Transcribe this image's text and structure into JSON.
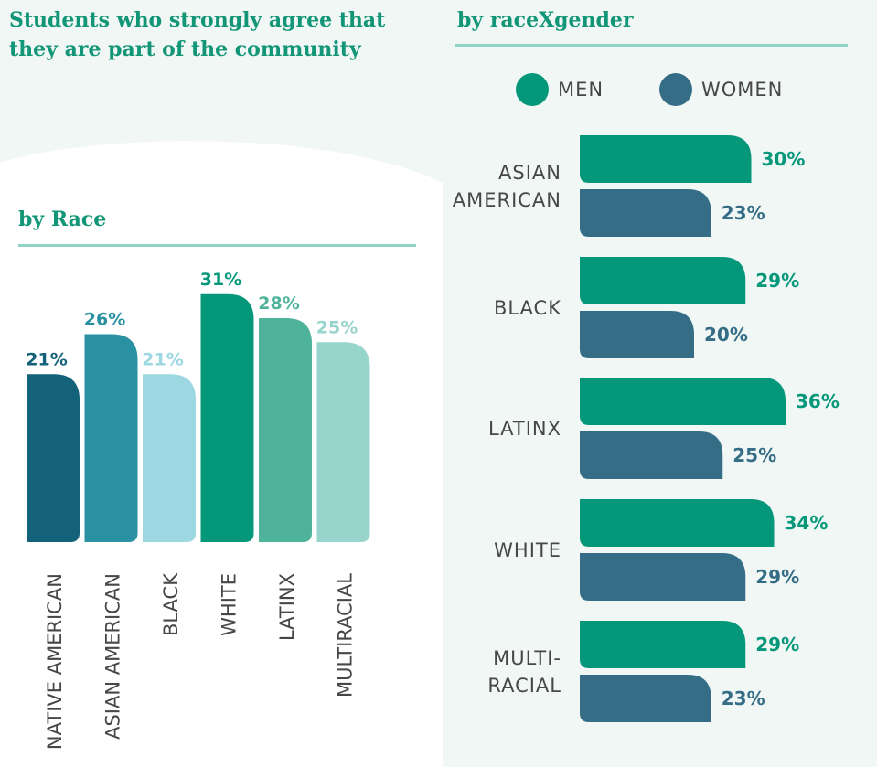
{
  "titles": {
    "main": "Students who strongly agree that they are part of the community",
    "by_race": "by Race",
    "by_race_gender": "by raceXgender"
  },
  "legend": {
    "men": "MEN",
    "women": "WOMEN"
  },
  "colors": {
    "men": "#04977a",
    "women": "#356d86",
    "heading": "#129677",
    "rule": "#8fd4c8"
  },
  "chart_data": [
    {
      "type": "bar",
      "title": "by Race",
      "categories": [
        "NATIVE AMERICAN",
        "ASIAN AMERICAN",
        "BLACK",
        "WHITE",
        "LATINX",
        "MULTIRACIAL"
      ],
      "values": [
        21,
        26,
        21,
        31,
        28,
        25
      ],
      "value_labels": [
        "21%",
        "26%",
        "21%",
        "31%",
        "28%",
        "25%"
      ],
      "colors": [
        "#14627a",
        "#2a91a3",
        "#9cd7e2",
        "#04977a",
        "#4fb39b",
        "#97d4cb"
      ],
      "label_colors": [
        "#14627a",
        "#2a91a3",
        "#9cd7e2",
        "#04977a",
        "#4fb39b",
        "#97d4cb"
      ],
      "unit": "%"
    },
    {
      "type": "bar",
      "orientation": "horizontal",
      "title": "by raceXgender",
      "categories": [
        [
          "ASIAN",
          "AMERICAN"
        ],
        [
          "BLACK"
        ],
        [
          "LATINX"
        ],
        [
          "WHITE"
        ],
        [
          "MULTI-",
          "RACIAL"
        ]
      ],
      "series": [
        {
          "name": "MEN",
          "values": [
            30,
            29,
            36,
            34,
            29
          ],
          "labels": [
            "30%",
            "29%",
            "36%",
            "34%",
            "29%"
          ]
        },
        {
          "name": "WOMEN",
          "values": [
            23,
            20,
            25,
            29,
            23
          ],
          "labels": [
            "23%",
            "20%",
            "25%",
            "29%",
            "23%"
          ]
        }
      ],
      "legend": "top",
      "unit": "%"
    }
  ]
}
